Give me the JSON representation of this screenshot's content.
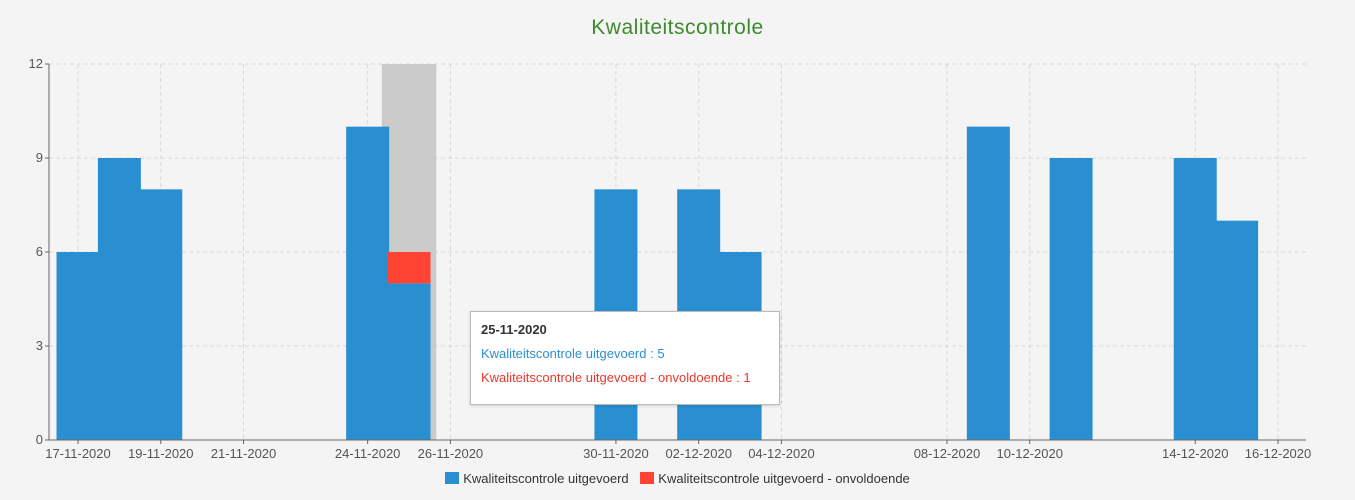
{
  "chart_data": {
    "type": "bar",
    "title": "Kwaliteitscontrole",
    "xlabel": "",
    "ylabel": "",
    "ylim": [
      0,
      12
    ],
    "yticks": [
      0,
      3,
      6,
      9,
      12
    ],
    "x_tick_labels": [
      "17-11-2020",
      "19-11-2020",
      "21-11-2020",
      "24-11-2020",
      "26-11-2020",
      "30-11-2020",
      "02-12-2020",
      "04-12-2020",
      "08-12-2020",
      "10-12-2020",
      "14-12-2020",
      "16-12-2020"
    ],
    "categories": [
      "17-11-2020",
      "18-11-2020",
      "19-11-2020",
      "20-11-2020",
      "21-11-2020",
      "23-11-2020",
      "24-11-2020",
      "25-11-2020",
      "26-11-2020",
      "27-11-2020",
      "30-11-2020",
      "01-12-2020",
      "02-12-2020",
      "03-12-2020",
      "04-12-2020",
      "07-12-2020",
      "08-12-2020",
      "09-12-2020",
      "10-12-2020",
      "11-12-2020",
      "14-12-2020",
      "15-12-2020",
      "16-12-2020"
    ],
    "stacked": true,
    "series": [
      {
        "name": "Kwaliteitscontrole uitgevoerd",
        "color": "#2a8fd1",
        "values": [
          6,
          9,
          8,
          0,
          0,
          0,
          10,
          5,
          0,
          0,
          8,
          0,
          8,
          6,
          0,
          0,
          0,
          10,
          0,
          9,
          9,
          7,
          0
        ]
      },
      {
        "name": "Kwaliteitscontrole uitgevoerd - onvoldoende",
        "color": "#ff4433",
        "values": [
          0,
          0,
          0,
          0,
          0,
          0,
          0,
          1,
          0,
          0,
          0,
          0,
          0,
          0,
          0,
          0,
          0,
          0,
          0,
          0,
          0,
          0,
          0
        ]
      }
    ],
    "highlight_category": "25-11-2020",
    "grid": true,
    "legend_position": "bottom"
  },
  "tooltip": {
    "date": "25-11-2020",
    "line1": "Kwaliteitscontrole uitgevoerd : 5",
    "line2": "Kwaliteitscontrole uitgevoerd - onvoldoende : 1"
  },
  "legend": {
    "items": [
      {
        "label": "Kwaliteitscontrole uitgevoerd",
        "color": "#2a8fd1"
      },
      {
        "label": "Kwaliteitscontrole uitgevoerd - onvoldoende",
        "color": "#ff4433"
      }
    ]
  }
}
